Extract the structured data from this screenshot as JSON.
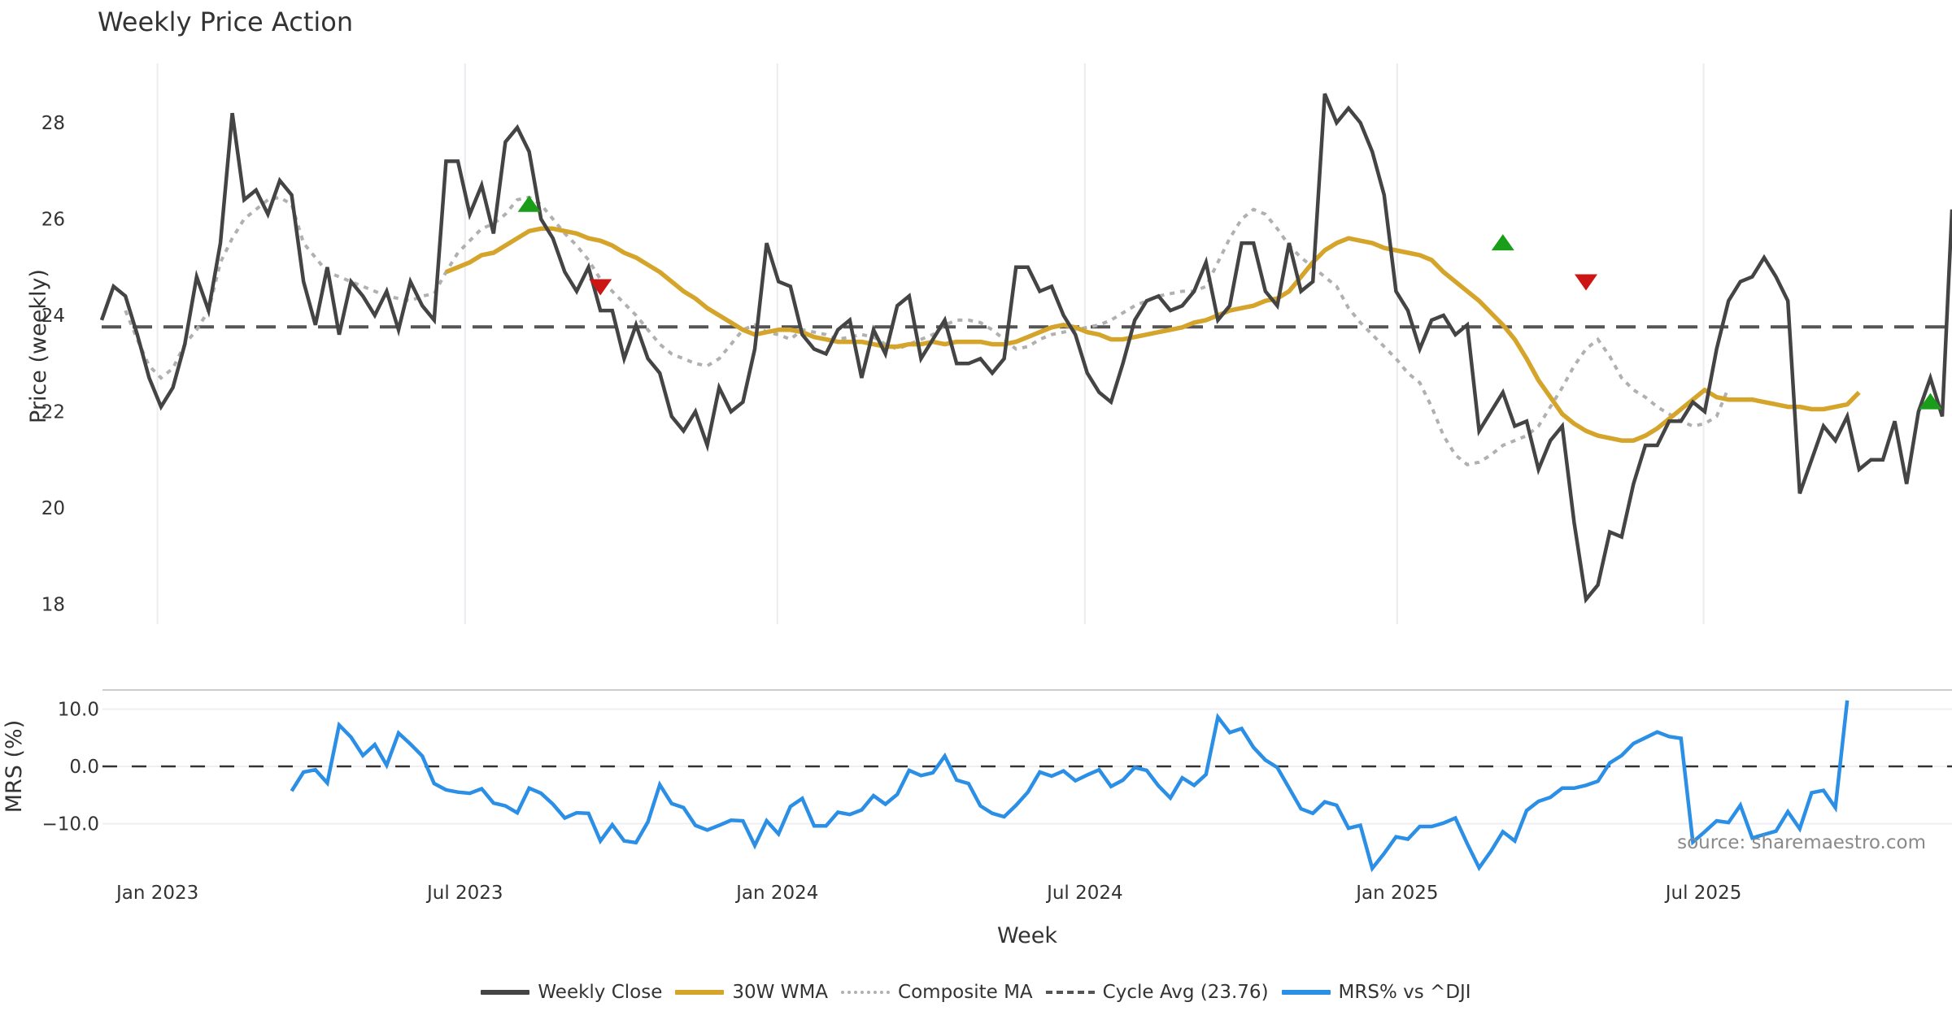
{
  "chart_data": [
    {
      "type": "line",
      "title": "Weekly Price Action",
      "xlabel": "",
      "ylabel": "Price (weekly)",
      "ylim": [
        17.6,
        29.2
      ],
      "yticks": [
        "18",
        "20",
        "22",
        "24",
        "26",
        "28"
      ],
      "ytick_values": [
        18,
        20,
        22,
        24,
        26,
        28
      ],
      "grid": "vertical",
      "x_start_week_index": 0,
      "series": [
        {
          "name": "Weekly Close",
          "color": "#444444",
          "values": [
            23.9,
            24.6,
            24.4,
            23.6,
            22.7,
            22.1,
            22.5,
            23.4,
            24.8,
            24.1,
            25.5,
            28.2,
            26.4,
            26.6,
            26.1,
            26.8,
            26.5,
            24.7,
            23.8,
            25.0,
            23.6,
            24.7,
            24.4,
            24.0,
            24.5,
            23.7,
            24.7,
            24.2,
            23.9,
            27.2,
            27.2,
            26.1,
            26.7,
            25.7,
            27.6,
            27.9,
            27.4,
            26.0,
            25.6,
            24.9,
            24.5,
            25.0,
            24.1,
            24.1,
            23.1,
            23.8,
            23.1,
            22.8,
            21.9,
            21.6,
            22.0,
            21.3,
            22.5,
            22.0,
            22.2,
            23.3,
            25.5,
            24.7,
            24.6,
            23.6,
            23.3,
            23.2,
            23.7,
            23.9,
            22.7,
            23.7,
            23.2,
            24.2,
            24.4,
            23.1,
            23.5,
            23.9,
            23.0,
            23.0,
            23.1,
            22.8,
            23.1,
            25.0,
            25.0,
            24.5,
            24.6,
            24.0,
            23.6,
            22.8,
            22.4,
            22.2,
            23.0,
            23.9,
            24.3,
            24.4,
            24.1,
            24.2,
            24.5,
            25.1,
            23.9,
            24.2,
            25.5,
            25.5,
            24.5,
            24.2,
            25.5,
            24.5,
            24.7,
            28.6,
            28.0,
            28.3,
            28.0,
            27.4,
            26.5,
            24.5,
            24.1,
            23.3,
            23.9,
            24.0,
            23.6,
            23.8,
            21.6,
            22.0,
            22.4,
            21.7,
            21.8,
            20.8,
            21.4,
            21.7,
            19.7,
            18.1,
            18.4,
            19.5,
            19.4,
            20.5,
            21.3,
            21.3,
            21.8,
            21.8,
            22.2,
            22.0,
            23.3,
            24.3,
            24.7,
            24.8,
            25.2,
            24.8,
            24.3,
            20.3,
            21.0,
            21.7,
            21.4,
            21.9,
            20.8,
            21.0,
            21.0,
            21.8,
            20.5,
            22.0,
            22.7,
            21.9,
            26.2
          ],
          "line": "solid"
        },
        {
          "name": "30W WMA",
          "color": "#D4A52A",
          "start_week_index": 29,
          "values": [
            24.9,
            25.0,
            25.1,
            25.25,
            25.3,
            25.45,
            25.6,
            25.75,
            25.8,
            25.8,
            25.75,
            25.7,
            25.6,
            25.55,
            25.45,
            25.3,
            25.2,
            25.05,
            24.9,
            24.7,
            24.5,
            24.35,
            24.15,
            24.0,
            23.85,
            23.7,
            23.6,
            23.65,
            23.7,
            23.7,
            23.65,
            23.55,
            23.5,
            23.45,
            23.45,
            23.45,
            23.4,
            23.35,
            23.35,
            23.4,
            23.4,
            23.45,
            23.4,
            23.45,
            23.45,
            23.45,
            23.4,
            23.4,
            23.45,
            23.55,
            23.65,
            23.75,
            23.8,
            23.75,
            23.65,
            23.6,
            23.5,
            23.5,
            23.55,
            23.6,
            23.65,
            23.7,
            23.75,
            23.85,
            23.9,
            24.0,
            24.1,
            24.15,
            24.2,
            24.3,
            24.35,
            24.5,
            24.8,
            25.1,
            25.35,
            25.5,
            25.6,
            25.55,
            25.5,
            25.4,
            25.35,
            25.3,
            25.25,
            25.15,
            24.9,
            24.7,
            24.5,
            24.3,
            24.05,
            23.8,
            23.5,
            23.1,
            22.65,
            22.3,
            21.95,
            21.75,
            21.6,
            21.5,
            21.45,
            21.4,
            21.4,
            21.5,
            21.65,
            21.85,
            22.05,
            22.25,
            22.45,
            22.3,
            22.25,
            22.25,
            22.25,
            22.2,
            22.15,
            22.1,
            22.1,
            22.05,
            22.05,
            22.1,
            22.15,
            22.4
          ],
          "line": "solid"
        },
        {
          "name": "Composite MA",
          "color": "#B0B0B0",
          "start_week_index": 2,
          "values": [
            24.1,
            23.5,
            22.95,
            22.7,
            22.9,
            23.4,
            23.7,
            24.1,
            25.1,
            25.6,
            26.0,
            26.2,
            26.4,
            26.45,
            26.3,
            25.5,
            25.2,
            24.9,
            24.8,
            24.7,
            24.6,
            24.5,
            24.4,
            24.35,
            24.3,
            24.4,
            24.45,
            24.9,
            25.3,
            25.55,
            25.8,
            25.9,
            26.1,
            26.4,
            26.45,
            26.3,
            26.0,
            25.7,
            25.45,
            25.15,
            24.75,
            24.5,
            24.25,
            24.0,
            23.7,
            23.4,
            23.2,
            23.1,
            23.0,
            22.95,
            23.1,
            23.4,
            23.7,
            23.8,
            23.65,
            23.6,
            23.5,
            23.7,
            23.65,
            23.6,
            23.5,
            23.55,
            23.6,
            23.55,
            23.4,
            23.3,
            23.4,
            23.5,
            23.6,
            23.8,
            23.9,
            23.9,
            23.85,
            23.7,
            23.5,
            23.3,
            23.35,
            23.5,
            23.6,
            23.65,
            23.7,
            23.75,
            23.8,
            23.9,
            24.05,
            24.2,
            24.3,
            24.4,
            24.45,
            24.5,
            24.5,
            24.6,
            25.1,
            25.6,
            26.0,
            26.2,
            26.1,
            25.8,
            25.45,
            25.2,
            25.0,
            24.8,
            24.6,
            24.15,
            23.85,
            23.6,
            23.35,
            23.1,
            22.8,
            22.6,
            22.1,
            21.5,
            21.1,
            20.9,
            20.95,
            21.1,
            21.3,
            21.4,
            21.5,
            21.7,
            22.1,
            22.5,
            22.95,
            23.3,
            23.5,
            23.15,
            22.7,
            22.45,
            22.3,
            22.1,
            21.95,
            21.8,
            21.7,
            21.75,
            21.9,
            22.5
          ],
          "line": "dotted"
        },
        {
          "name": "Cycle Avg (23.76)",
          "color": "#555555",
          "values": [
            23.76
          ],
          "line": "dashed"
        }
      ],
      "markers": [
        {
          "type": "buy",
          "symbol": "triangle-up",
          "color": "#1A9E1A",
          "week_index": 36,
          "value": 26.3
        },
        {
          "type": "sell",
          "symbol": "triangle-down",
          "color": "#CC1616",
          "week_index": 42,
          "value": 24.6
        },
        {
          "type": "buy",
          "symbol": "triangle-up",
          "color": "#1A9E1A",
          "week_index": 118,
          "value": 25.5
        },
        {
          "type": "sell",
          "symbol": "triangle-down",
          "color": "#CC1616",
          "week_index": 125,
          "value": 24.7
        },
        {
          "type": "buy",
          "symbol": "triangle-up",
          "color": "#1A9E1A",
          "week_index": 154,
          "value": 22.2
        }
      ]
    },
    {
      "type": "line",
      "title": "",
      "xlabel": "Week",
      "ylabel": "MRS (%)",
      "ylim": [
        -16,
        13
      ],
      "yticks": [
        "−10.0",
        "0.0",
        "10.0"
      ],
      "ytick_values": [
        -10,
        0,
        10
      ],
      "xticks": [
        "Jan 2023",
        "Jul 2023",
        "Jan 2024",
        "Jul 2024",
        "Jan 2025",
        "Jul 2025"
      ],
      "xtick_week_index": [
        4.7,
        30.6,
        56.9,
        82.8,
        109.1,
        134.9
      ],
      "grid": "horizontal",
      "series": [
        {
          "name": "MRS% vs ^DJI",
          "color": "#2B8FE6",
          "start_week_index": 16,
          "values": [
            -4.3,
            -1.0,
            -0.6,
            -2.9,
            7.2,
            5.1,
            1.9,
            3.8,
            0.2,
            5.8,
            3.9,
            1.8,
            -3.0,
            -4.1,
            -4.5,
            -4.7,
            -3.9,
            -6.4,
            -6.9,
            -8.1,
            -3.8,
            -4.7,
            -6.6,
            -9.0,
            -8.1,
            -8.2,
            -13.0,
            -10.2,
            -13.0,
            -13.3,
            -9.7,
            -3.2,
            -6.5,
            -7.2,
            -10.3,
            -11.1,
            -10.3,
            -9.4,
            -9.5,
            -13.8,
            -9.5,
            -11.8,
            -7.0,
            -5.6,
            -10.4,
            -10.4,
            -8.0,
            -8.4,
            -7.6,
            -5.1,
            -6.6,
            -4.9,
            -0.7,
            -1.6,
            -1.1,
            1.8,
            -2.4,
            -3.0,
            -6.9,
            -8.2,
            -8.8,
            -6.8,
            -4.5,
            -1.0,
            -1.7,
            -0.8,
            -2.5,
            -1.5,
            -0.6,
            -3.5,
            -2.4,
            -0.2,
            -0.7,
            -3.4,
            -5.5,
            -2.0,
            -3.3,
            -1.4,
            8.6,
            5.9,
            6.6,
            3.3,
            1.1,
            -0.2,
            -3.8,
            -7.4,
            -8.2,
            -6.2,
            -6.8,
            -10.8,
            -10.3,
            -17.8,
            -15.2,
            -12.3,
            -12.7,
            -10.5,
            -10.5,
            -9.9,
            -9.0,
            -13.5,
            -17.7,
            -14.8,
            -11.4,
            -13.0,
            -7.7,
            -6.1,
            -5.4,
            -3.8,
            -3.8,
            -3.3,
            -2.6,
            0.6,
            1.9,
            4.0,
            5.0,
            6.0,
            5.2,
            4.9,
            -13.2,
            -11.4,
            -9.5,
            -9.8,
            -6.8,
            -12.5,
            -11.9,
            -11.3,
            -7.9,
            -10.9,
            -4.6,
            -4.2,
            -7.2,
            11.5
          ]
        },
        {
          "name": "zero-line",
          "color": "#333333",
          "values": [
            0
          ],
          "line": "dashed"
        }
      ],
      "annotations": [
        "source: sharemaestro.com"
      ]
    }
  ],
  "legend": {
    "placement": "bottom-center",
    "items": [
      {
        "label": "Weekly Close",
        "style": "solid",
        "color": "#444444"
      },
      {
        "label": "30W WMA",
        "style": "solid",
        "color": "#D4A52A"
      },
      {
        "label": "Composite MA",
        "style": "dotted",
        "color": "#B0B0B0"
      },
      {
        "label": "Cycle Avg (23.76)",
        "style": "dashed",
        "color": "#555555"
      },
      {
        "label": "MRS% vs ^DJI",
        "style": "solid",
        "color": "#2B8FE6"
      }
    ]
  }
}
